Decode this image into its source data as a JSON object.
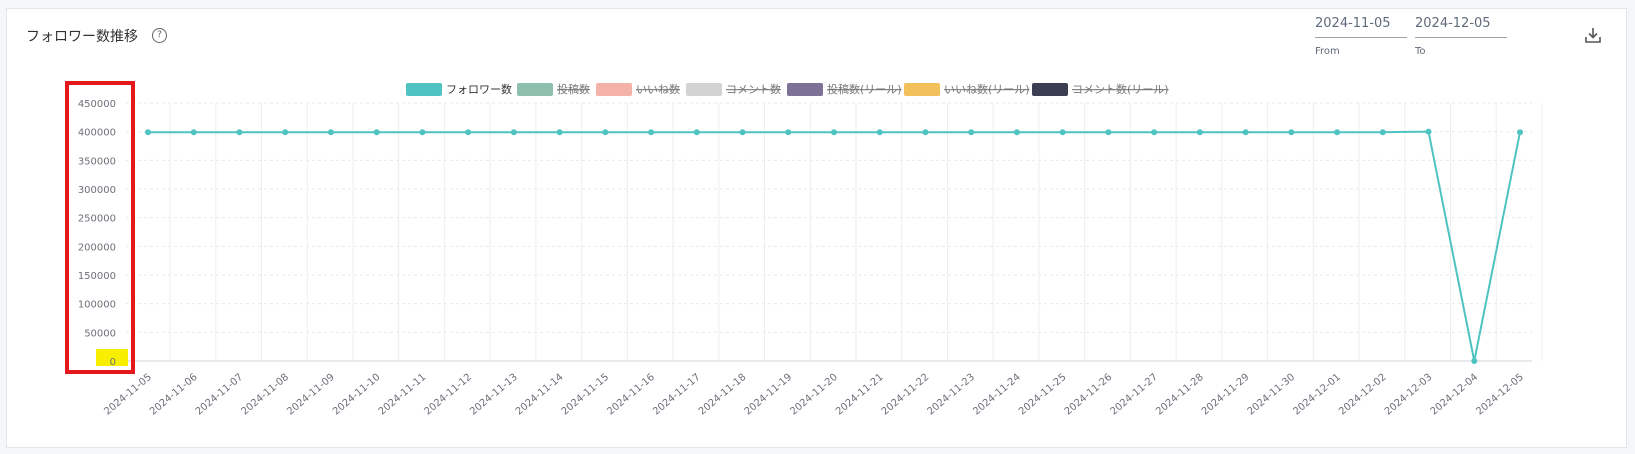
{
  "header": {
    "title": "フォロワー数推移",
    "help_icon": "?",
    "from_value": "2024-11-05",
    "from_caption": "From",
    "to_value": "2024-12-05",
    "to_caption": "To",
    "download_icon": "download-icon"
  },
  "chart_data": {
    "type": "line",
    "legend": [
      {
        "name": "フォロワー数",
        "color": "#4fc3c1",
        "active": true
      },
      {
        "name": "投稿数",
        "color": "#8fbfad",
        "active": false
      },
      {
        "name": "いいね数",
        "color": "#f4b2a8",
        "active": false
      },
      {
        "name": "コメント数",
        "color": "#d3d3d3",
        "active": false
      },
      {
        "name": "投稿数(リール)",
        "color": "#7d7195",
        "active": false
      },
      {
        "name": "いいね数(リール)",
        "color": "#f2c15b",
        "active": false
      },
      {
        "name": "コメント数(リール)",
        "color": "#3c3f52",
        "active": false
      }
    ],
    "ylim": [
      0,
      450000
    ],
    "yticks": [
      "0",
      "50000",
      "100000",
      "150000",
      "200000",
      "250000",
      "300000",
      "350000",
      "400000",
      "450000"
    ],
    "categories": [
      "2024-11-05",
      "2024-11-06",
      "2024-11-07",
      "2024-11-08",
      "2024-11-09",
      "2024-11-10",
      "2024-11-11",
      "2024-11-12",
      "2024-11-13",
      "2024-11-14",
      "2024-11-15",
      "2024-11-16",
      "2024-11-17",
      "2024-11-18",
      "2024-11-19",
      "2024-11-20",
      "2024-11-21",
      "2024-11-22",
      "2024-11-23",
      "2024-11-24",
      "2024-11-25",
      "2024-11-26",
      "2024-11-27",
      "2024-11-28",
      "2024-11-29",
      "2024-11-30",
      "2024-12-01",
      "2024-12-02",
      "2024-12-03",
      "2024-12-04",
      "2024-12-05"
    ],
    "series": [
      {
        "name": "フォロワー数",
        "color": "#4fc3c1",
        "values": [
          399000,
          399000,
          399000,
          399000,
          399000,
          399000,
          399000,
          399000,
          399000,
          399000,
          399000,
          399000,
          399000,
          399000,
          399000,
          399000,
          399000,
          399000,
          399000,
          399000,
          399000,
          399000,
          399000,
          399000,
          399000,
          399000,
          399000,
          399000,
          400000,
          0,
          399000
        ]
      }
    ],
    "grid": true
  },
  "annotations": {
    "highlight_box_color": "#e3191c",
    "zero_highlight_color": "#f7ee00"
  }
}
